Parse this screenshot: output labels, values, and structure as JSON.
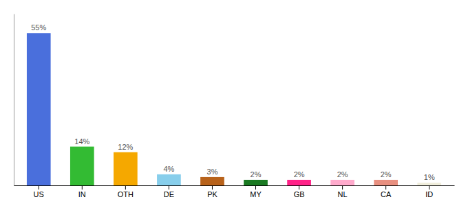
{
  "chart_data": {
    "type": "bar",
    "categories": [
      "US",
      "IN",
      "OTH",
      "DE",
      "PK",
      "MY",
      "GB",
      "NL",
      "CA",
      "ID"
    ],
    "values": [
      55,
      14,
      12,
      4,
      3,
      2,
      2,
      2,
      2,
      1
    ],
    "value_labels": [
      "55%",
      "14%",
      "12%",
      "4%",
      "3%",
      "2%",
      "2%",
      "2%",
      "2%",
      "1%"
    ],
    "colors": [
      "#4a6fdc",
      "#33bb33",
      "#f5a800",
      "#87ceeb",
      "#b8621a",
      "#1a7a22",
      "#ff2288",
      "#ffaacc",
      "#e89080",
      "#f0eedc"
    ],
    "ylim": [
      0,
      62
    ],
    "data_labels": true,
    "tick_labels": "x"
  }
}
